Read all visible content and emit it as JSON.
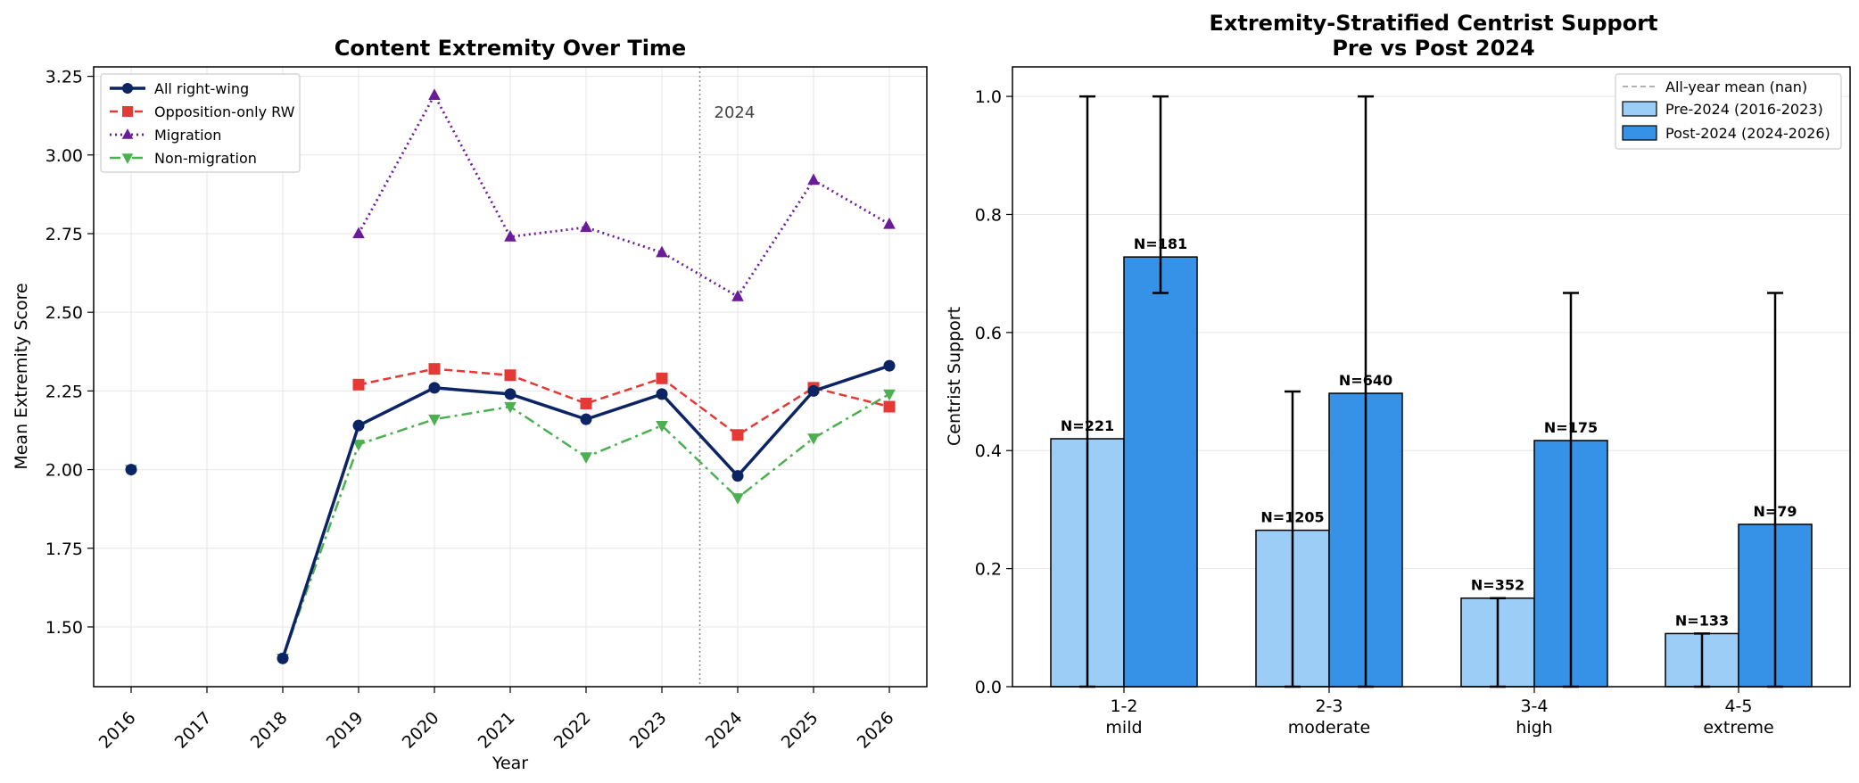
{
  "colors": {
    "all_rw": "#0b2463",
    "opposition": "#e53935",
    "migration": "#6a1b9a",
    "non_migration": "#4caf50",
    "pre_2024": "#9ccdf7",
    "post_2024": "#3592e6",
    "grid": "#e6e6e6",
    "vline": "#888888"
  },
  "chart_data": [
    {
      "type": "line",
      "title": "Content Extremity Over Time",
      "xlabel": "Year",
      "ylabel": "Mean Extremity Score",
      "categories": [
        "2016",
        "2017",
        "2018",
        "2019",
        "2020",
        "2021",
        "2022",
        "2023",
        "2024",
        "2025",
        "2026"
      ],
      "ylim": [
        1.31,
        3.28
      ],
      "yticks": [
        "1.50",
        "1.75",
        "2.00",
        "2.25",
        "2.50",
        "2.75",
        "3.00",
        "3.25"
      ],
      "ytick_values": [
        1.5,
        1.75,
        2.0,
        2.25,
        2.5,
        2.75,
        3.0,
        3.25
      ],
      "grid": true,
      "legend_position": "top-left",
      "vline": {
        "x_between": [
          "2023",
          "2024"
        ],
        "label": "2024"
      },
      "series": [
        {
          "name": "All right-wing",
          "style": "solid",
          "marker": "circle",
          "values": [
            2.0,
            null,
            1.4,
            2.14,
            2.26,
            2.24,
            2.16,
            2.24,
            1.98,
            2.25,
            2.33
          ]
        },
        {
          "name": "Opposition-only RW",
          "style": "dashed",
          "marker": "square",
          "values": [
            null,
            null,
            null,
            2.27,
            2.32,
            2.3,
            2.21,
            2.29,
            2.11,
            2.26,
            2.2
          ]
        },
        {
          "name": "Migration",
          "style": "dotted",
          "marker": "triangle-up",
          "values": [
            null,
            null,
            null,
            2.75,
            3.19,
            2.74,
            2.77,
            2.69,
            2.55,
            2.92,
            2.78
          ]
        },
        {
          "name": "Non-migration",
          "style": "dashdot",
          "marker": "triangle-down",
          "values": [
            2.0,
            null,
            1.4,
            2.08,
            2.16,
            2.2,
            2.04,
            2.14,
            1.91,
            2.1,
            2.24
          ]
        }
      ]
    },
    {
      "type": "bar",
      "title": "Extremity-Stratified Centrist Support",
      "subtitle": "Pre vs Post 2024",
      "xlabel": "",
      "ylabel": "Centrist Support",
      "categories": [
        "1-2",
        "2-3",
        "3-4",
        "4-5"
      ],
      "category_sublabels": [
        "mild",
        "moderate",
        "high",
        "extreme"
      ],
      "ylim": [
        0,
        1.05
      ],
      "yticks": [
        "0.0",
        "0.2",
        "0.4",
        "0.6",
        "0.8",
        "1.0"
      ],
      "ytick_values": [
        0,
        0.2,
        0.4,
        0.6,
        0.8,
        1.0
      ],
      "grid": true,
      "legend_position": "top-right",
      "legend_extra": "All-year mean (nan)",
      "series": [
        {
          "name": "Pre-2024 (2016-2023)",
          "values": [
            0.42,
            0.265,
            0.15,
            0.09
          ],
          "n_labels": [
            "N=221",
            "N=1205",
            "N=352",
            "N=133"
          ],
          "err_low": [
            0.0,
            0.0,
            0.0,
            0.0
          ],
          "err_high": [
            1.0,
            0.5,
            0.15,
            0.09
          ]
        },
        {
          "name": "Post-2024 (2024-2026)",
          "values": [
            0.728,
            0.497,
            0.417,
            0.275
          ],
          "n_labels": [
            "N=181",
            "N=640",
            "N=175",
            "N=79"
          ],
          "err_low": [
            0.667,
            0.0,
            0.0,
            0.0
          ],
          "err_high": [
            1.0,
            1.0,
            0.667,
            0.667
          ]
        }
      ]
    }
  ]
}
